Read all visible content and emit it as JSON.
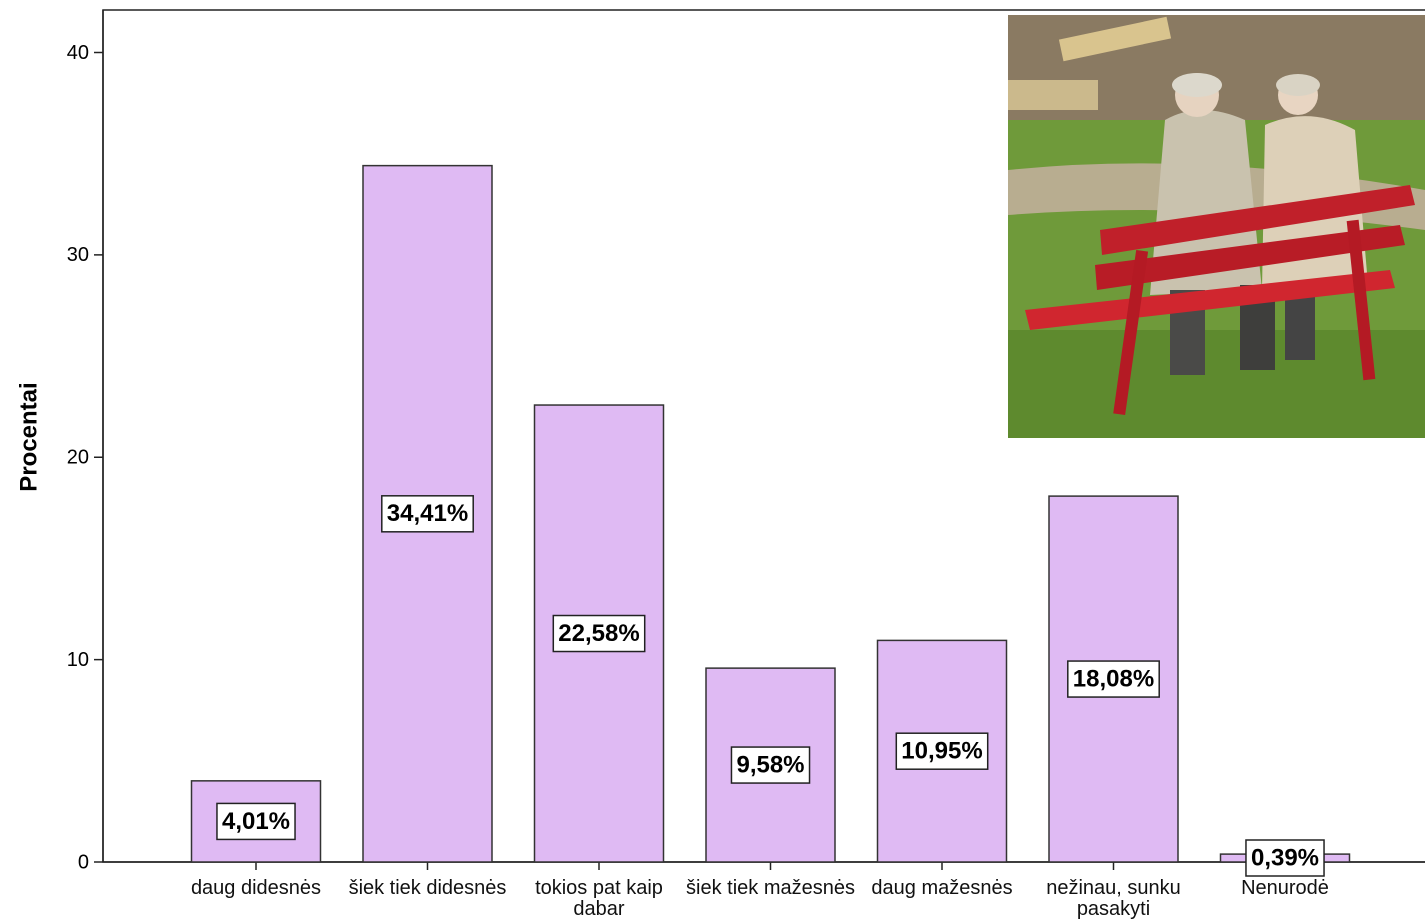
{
  "chart_data": {
    "type": "bar",
    "y_label": "Procentai",
    "categories": [
      "daug didesnės",
      "šiek tiek didesnės",
      "tokios pat kaip dabar",
      "šiek tiek mažesnės",
      "daug mažesnės",
      "nežinau, sunku pasakyti",
      "Nenurodė"
    ],
    "values": [
      4.01,
      34.41,
      22.58,
      9.58,
      10.95,
      18.08,
      0.39
    ],
    "value_labels": [
      "4,01%",
      "34,41%",
      "22,58%",
      "9,58%",
      "10,95%",
      "18,08%",
      "0,39%"
    ],
    "color": "#dfbaf3",
    "ylim": [
      0,
      42.1
    ],
    "yticks": [
      0,
      10,
      20,
      30,
      40
    ],
    "grid": false
  }
}
